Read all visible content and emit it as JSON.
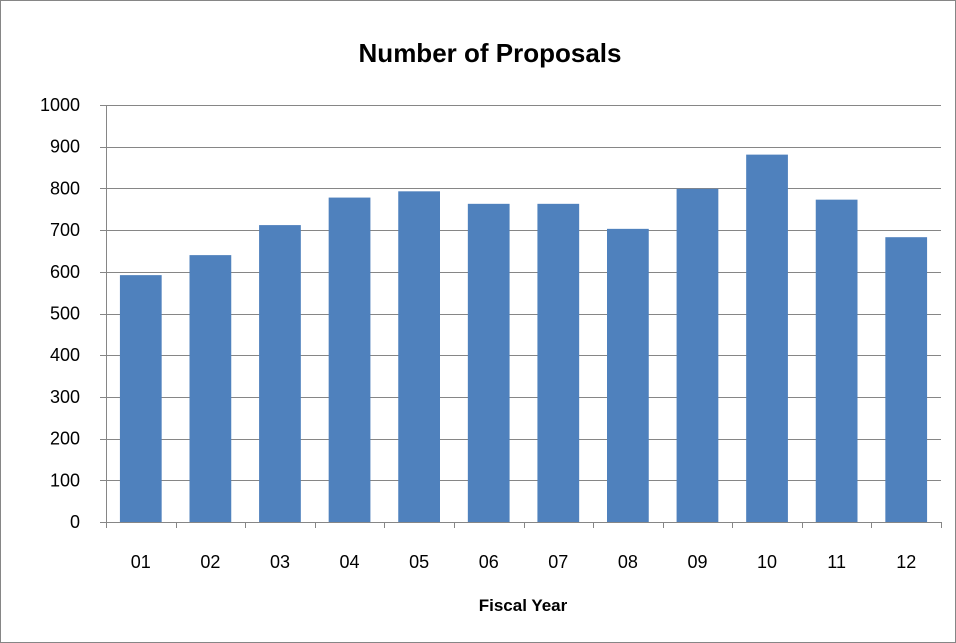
{
  "chart_data": {
    "type": "bar",
    "title": "Number of Proposals",
    "xlabel": "Fiscal Year",
    "ylabel": "",
    "categories": [
      "01",
      "02",
      "03",
      "04",
      "05",
      "06",
      "07",
      "08",
      "09",
      "10",
      "11",
      "12"
    ],
    "values": [
      592,
      640,
      712,
      778,
      793,
      763,
      763,
      703,
      799,
      881,
      773,
      683
    ],
    "ylim": [
      0,
      1000
    ],
    "yticks": [
      "0",
      "100",
      "200",
      "300",
      "400",
      "500",
      "600",
      "700",
      "800",
      "900",
      "1000"
    ],
    "grid": "horizontal",
    "legend": "none",
    "bar_color": "#4F81BD",
    "grid_color": "#868686"
  }
}
